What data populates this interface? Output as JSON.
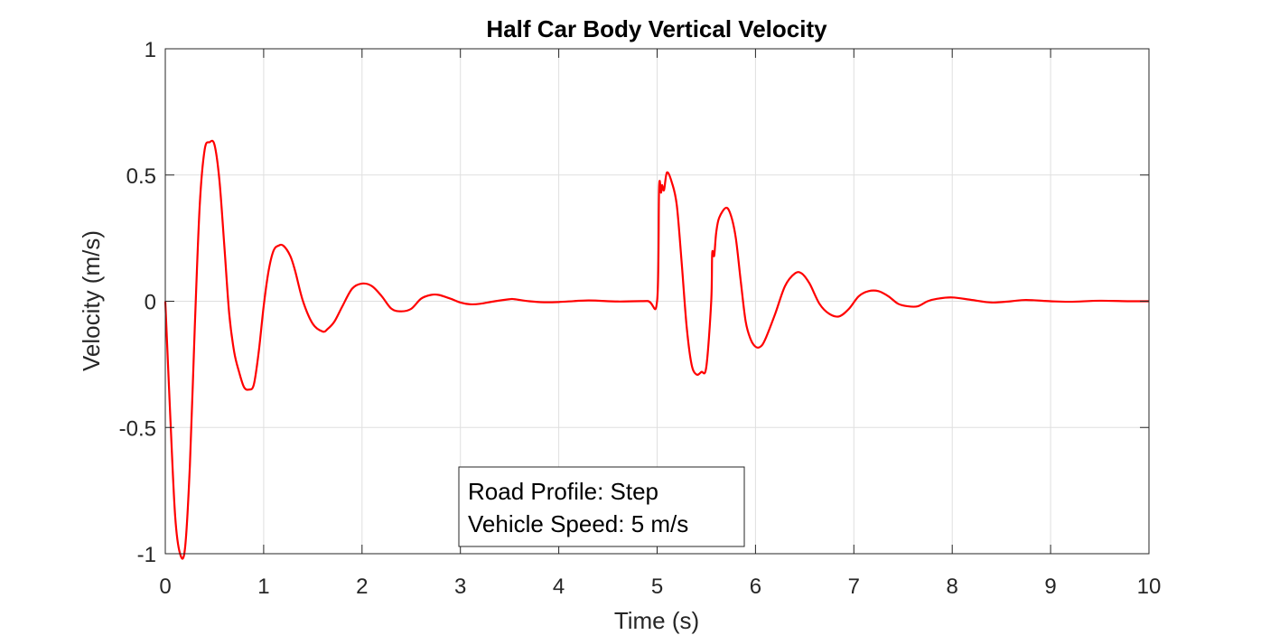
{
  "chart_data": {
    "type": "line",
    "title": "Half Car Body Vertical Velocity",
    "xlabel": "Time (s)",
    "ylabel": "Velocity (m/s)",
    "xlim": [
      0,
      10
    ],
    "ylim": [
      -1,
      1
    ],
    "xticks": [
      0,
      1,
      2,
      3,
      4,
      5,
      6,
      7,
      8,
      9,
      10
    ],
    "yticks": [
      -1,
      -0.5,
      0,
      0.5,
      1
    ],
    "xtick_labels": [
      "0",
      "1",
      "2",
      "3",
      "4",
      "5",
      "6",
      "7",
      "8",
      "9",
      "10"
    ],
    "ytick_labels": [
      "-1",
      "-0.5",
      "0",
      "0.5",
      "1"
    ],
    "grid": true,
    "line_color": "#ff0000",
    "annotations": [
      "Road Profile: Step",
      "Vehicle Speed: 5 m/s"
    ],
    "series": [
      {
        "x": [
          0,
          0.05,
          0.1,
          0.15,
          0.2,
          0.25,
          0.3,
          0.35,
          0.4,
          0.45,
          0.5,
          0.55,
          0.6,
          0.65,
          0.7,
          0.75,
          0.8,
          0.85,
          0.9,
          0.95,
          1.0,
          1.05,
          1.1,
          1.15,
          1.2,
          1.27,
          1.32,
          1.4,
          1.5,
          1.6,
          1.65,
          1.72,
          1.8,
          1.9,
          2.0,
          2.1,
          2.2,
          2.3,
          2.4,
          2.5,
          2.6,
          2.7,
          2.78,
          2.9,
          3.0,
          3.1,
          3.2,
          3.35,
          3.5,
          3.55,
          3.7,
          3.85,
          4.0,
          4.3,
          4.6,
          4.9,
          5.0,
          5.02,
          5.04,
          5.05,
          5.07,
          5.1,
          5.15,
          5.2,
          5.25,
          5.3,
          5.35,
          5.4,
          5.45,
          5.5,
          5.55,
          5.56,
          5.58,
          5.6,
          5.63,
          5.7,
          5.75,
          5.8,
          5.85,
          5.9,
          5.95,
          6.0,
          6.05,
          6.1,
          6.2,
          6.3,
          6.4,
          6.47,
          6.55,
          6.65,
          6.75,
          6.85,
          6.95,
          7.05,
          7.15,
          7.25,
          7.35,
          7.45,
          7.55,
          7.65,
          7.75,
          7.85,
          8.0,
          8.2,
          8.4,
          8.6,
          8.75,
          9.0,
          9.2,
          9.5,
          9.8,
          10.0
        ],
        "y": [
          0,
          -0.45,
          -0.85,
          -1.0,
          -0.98,
          -0.65,
          -0.1,
          0.38,
          0.6,
          0.63,
          0.62,
          0.48,
          0.22,
          -0.05,
          -0.2,
          -0.28,
          -0.34,
          -0.35,
          -0.33,
          -0.2,
          -0.02,
          0.12,
          0.2,
          0.22,
          0.22,
          0.18,
          0.12,
          0.0,
          -0.09,
          -0.12,
          -0.11,
          -0.08,
          -0.02,
          0.05,
          0.07,
          0.06,
          0.02,
          -0.03,
          -0.04,
          -0.03,
          0.01,
          0.025,
          0.025,
          0.01,
          -0.005,
          -0.012,
          -0.01,
          0.0,
          0.008,
          0.008,
          0.0,
          -0.004,
          -0.003,
          0.003,
          -0.001,
          0.001,
          0.002,
          0.45,
          0.43,
          0.46,
          0.44,
          0.51,
          0.47,
          0.38,
          0.15,
          -0.1,
          -0.25,
          -0.29,
          -0.28,
          -0.26,
          0.0,
          0.19,
          0.18,
          0.27,
          0.33,
          0.37,
          0.34,
          0.25,
          0.08,
          -0.08,
          -0.15,
          -0.18,
          -0.18,
          -0.15,
          -0.05,
          0.06,
          0.11,
          0.11,
          0.07,
          -0.01,
          -0.05,
          -0.06,
          -0.03,
          0.02,
          0.04,
          0.04,
          0.02,
          -0.01,
          -0.02,
          -0.02,
          0.0,
          0.01,
          0.015,
          0.005,
          -0.005,
          0.0,
          0.005,
          0.0,
          -0.002,
          0.002,
          0.0,
          0.0
        ]
      }
    ]
  }
}
